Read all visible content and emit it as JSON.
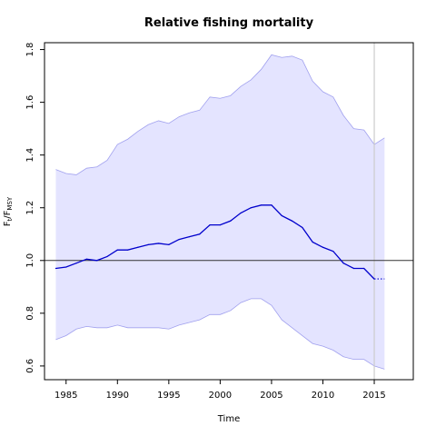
{
  "chart_data": {
    "type": "line",
    "title": "Relative fishing mortality",
    "xlabel": "Time",
    "ylabel": {
      "main": "F",
      "sub1": "t",
      "sep": "/F",
      "sub2": "MSY"
    },
    "xlim": [
      1982.9,
      2018.8
    ],
    "ylim": [
      0.548,
      1.826
    ],
    "xticks": [
      1985,
      1990,
      1995,
      2000,
      2005,
      2010,
      2015
    ],
    "xtick_labels": [
      "1985",
      "1990",
      "1995",
      "2000",
      "2005",
      "2010",
      "2015"
    ],
    "yticks": [
      0.6,
      0.8,
      1.0,
      1.2,
      1.4,
      1.6,
      1.8
    ],
    "ytick_labels": [
      "0.6",
      "0.8",
      "1.0",
      "1.2",
      "1.4",
      "1.6",
      "1.8"
    ],
    "reference_line": 1.0,
    "vertical_marker": 2015.0,
    "grid": false,
    "legend": "none",
    "colors": {
      "estimate": "#0000cc",
      "band_fill": "#e4e4ff",
      "band_edge": "#a0a0ee",
      "reference": "#333333",
      "vertical_marker": "#cccccc"
    },
    "x": [
      1984.0,
      1985.0,
      1986.0,
      1987.0,
      1988.0,
      1989.0,
      1990.0,
      1991.0,
      1992.0,
      1993.0,
      1994.0,
      1995.0,
      1996.0,
      1997.0,
      1998.0,
      1999.0,
      2000.0,
      2001.0,
      2002.0,
      2003.0,
      2004.0,
      2005.0,
      2006.0,
      2007.0,
      2008.0,
      2009.0,
      2010.0,
      2011.0,
      2012.0,
      2013.0,
      2014.0,
      2015.0
    ],
    "series": [
      {
        "role": "estimate",
        "values": [
          0.97,
          0.975,
          0.99,
          1.005,
          1.0,
          1.015,
          1.04,
          1.04,
          1.05,
          1.06,
          1.065,
          1.06,
          1.08,
          1.09,
          1.1,
          1.135,
          1.135,
          1.15,
          1.18,
          1.2,
          1.21,
          1.21,
          1.17,
          1.15,
          1.125,
          1.07,
          1.05,
          1.035,
          0.99,
          0.97,
          0.97,
          0.93
        ]
      },
      {
        "role": "upper",
        "values": [
          1.345,
          1.33,
          1.325,
          1.35,
          1.355,
          1.38,
          1.44,
          1.46,
          1.49,
          1.515,
          1.53,
          1.52,
          1.545,
          1.56,
          1.57,
          1.62,
          1.615,
          1.625,
          1.66,
          1.685,
          1.725,
          1.78,
          1.77,
          1.775,
          1.76,
          1.68,
          1.64,
          1.62,
          1.55,
          1.5,
          1.495,
          1.44
        ]
      },
      {
        "role": "lower",
        "values": [
          0.7,
          0.715,
          0.74,
          0.75,
          0.745,
          0.745,
          0.755,
          0.745,
          0.745,
          0.745,
          0.745,
          0.74,
          0.755,
          0.765,
          0.775,
          0.795,
          0.795,
          0.81,
          0.84,
          0.855,
          0.855,
          0.83,
          0.775,
          0.745,
          0.715,
          0.685,
          0.675,
          0.66,
          0.635,
          0.625,
          0.625,
          0.6
        ]
      }
    ],
    "projection": {
      "x": [
        2015.0,
        2016.0
      ],
      "estimate": [
        0.93,
        0.93
      ],
      "upper": [
        1.44,
        1.465
      ],
      "lower": [
        0.6,
        0.588
      ]
    }
  }
}
